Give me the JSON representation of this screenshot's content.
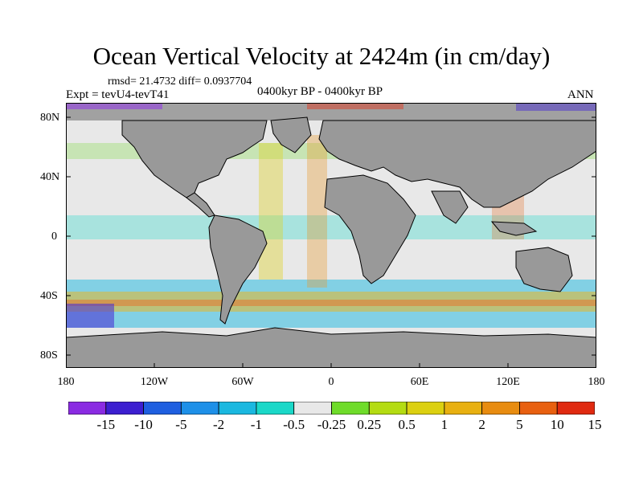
{
  "title": "Ocean Vertical Velocity at 2424m (in cm/day)",
  "stats": "rmsd= 21.4732 diff= 0.0937704",
  "experiment": "Expt = tevU4-tevT41",
  "period": "0400kyr BP - 0400kyr BP",
  "season": "ANN",
  "lat_ticks": [
    "80N",
    "40N",
    "0",
    "40S",
    "80S"
  ],
  "lon_ticks": [
    "180",
    "120W",
    "60W",
    "0",
    "60E",
    "120E",
    "180"
  ],
  "colorbar": {
    "labels": [
      "-15",
      "-10",
      "-5",
      "-2",
      "-1",
      "-0.5",
      "-0.25",
      "0.25",
      "0.5",
      "1",
      "2",
      "5",
      "10",
      "15"
    ],
    "colors": [
      "#8a2be2",
      "#3c1fd0",
      "#1f5fe0",
      "#1e90e8",
      "#1ab8e0",
      "#1ad8c8",
      "#e8e8e8",
      "#6fdc2a",
      "#b4dc12",
      "#dcd010",
      "#e8b010",
      "#e88c10",
      "#e86010",
      "#e02a10"
    ]
  },
  "colors": {
    "land": "#999999",
    "ocean_background": "#e8e8e8"
  }
}
